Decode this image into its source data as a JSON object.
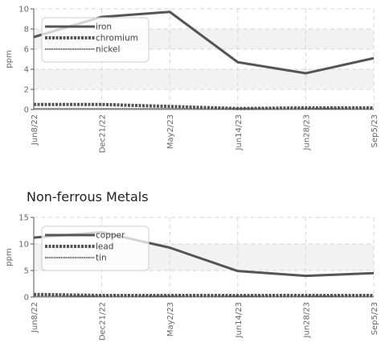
{
  "chart_data": [
    {
      "type": "line",
      "title": "",
      "xlabel": "",
      "ylabel": "ppm",
      "ylim": [
        0,
        10
      ],
      "yticks": [
        0,
        2,
        4,
        6,
        8,
        10
      ],
      "grid": true,
      "legend_placement": "top-left",
      "categories": [
        "Jun8/22",
        "Dec21/22",
        "May2/23",
        "Jun14/23",
        "Jun28/23",
        "Sep5/23"
      ],
      "series": [
        {
          "name": "iron",
          "style": "solid",
          "color": "#555555",
          "values": [
            7.2,
            9.2,
            9.7,
            4.7,
            3.6,
            5.1
          ]
        },
        {
          "name": "chromium",
          "style": "square-dotted",
          "color": "#555555",
          "values": [
            0.5,
            0.5,
            0.3,
            0.1,
            0.0,
            0.0
          ]
        },
        {
          "name": "nickel",
          "style": "fine-dotted",
          "color": "#555555",
          "values": [
            0.0,
            0.0,
            0.0,
            0.0,
            0.0,
            0.0
          ]
        }
      ]
    },
    {
      "type": "line",
      "title": "Non-ferrous Metals",
      "xlabel": "",
      "ylabel": "ppm",
      "ylim": [
        0,
        15
      ],
      "yticks": [
        0,
        5,
        10,
        15
      ],
      "grid": true,
      "legend_placement": "top-left",
      "categories": [
        "Jun8/22",
        "Dec21/22",
        "May2/23",
        "Jun14/23",
        "Jun28/23",
        "Sep5/23"
      ],
      "series": [
        {
          "name": "copper",
          "style": "solid",
          "color": "#555555",
          "values": [
            11.2,
            12.2,
            9.3,
            4.9,
            4.0,
            4.5
          ]
        },
        {
          "name": "lead",
          "style": "square-dotted",
          "color": "#555555",
          "values": [
            0.5,
            0.0,
            0.0,
            0.3,
            0.0,
            0.0
          ]
        },
        {
          "name": "tin",
          "style": "fine-dotted",
          "color": "#555555",
          "values": [
            0.0,
            0.0,
            0.0,
            0.0,
            0.0,
            0.0
          ]
        }
      ]
    }
  ]
}
